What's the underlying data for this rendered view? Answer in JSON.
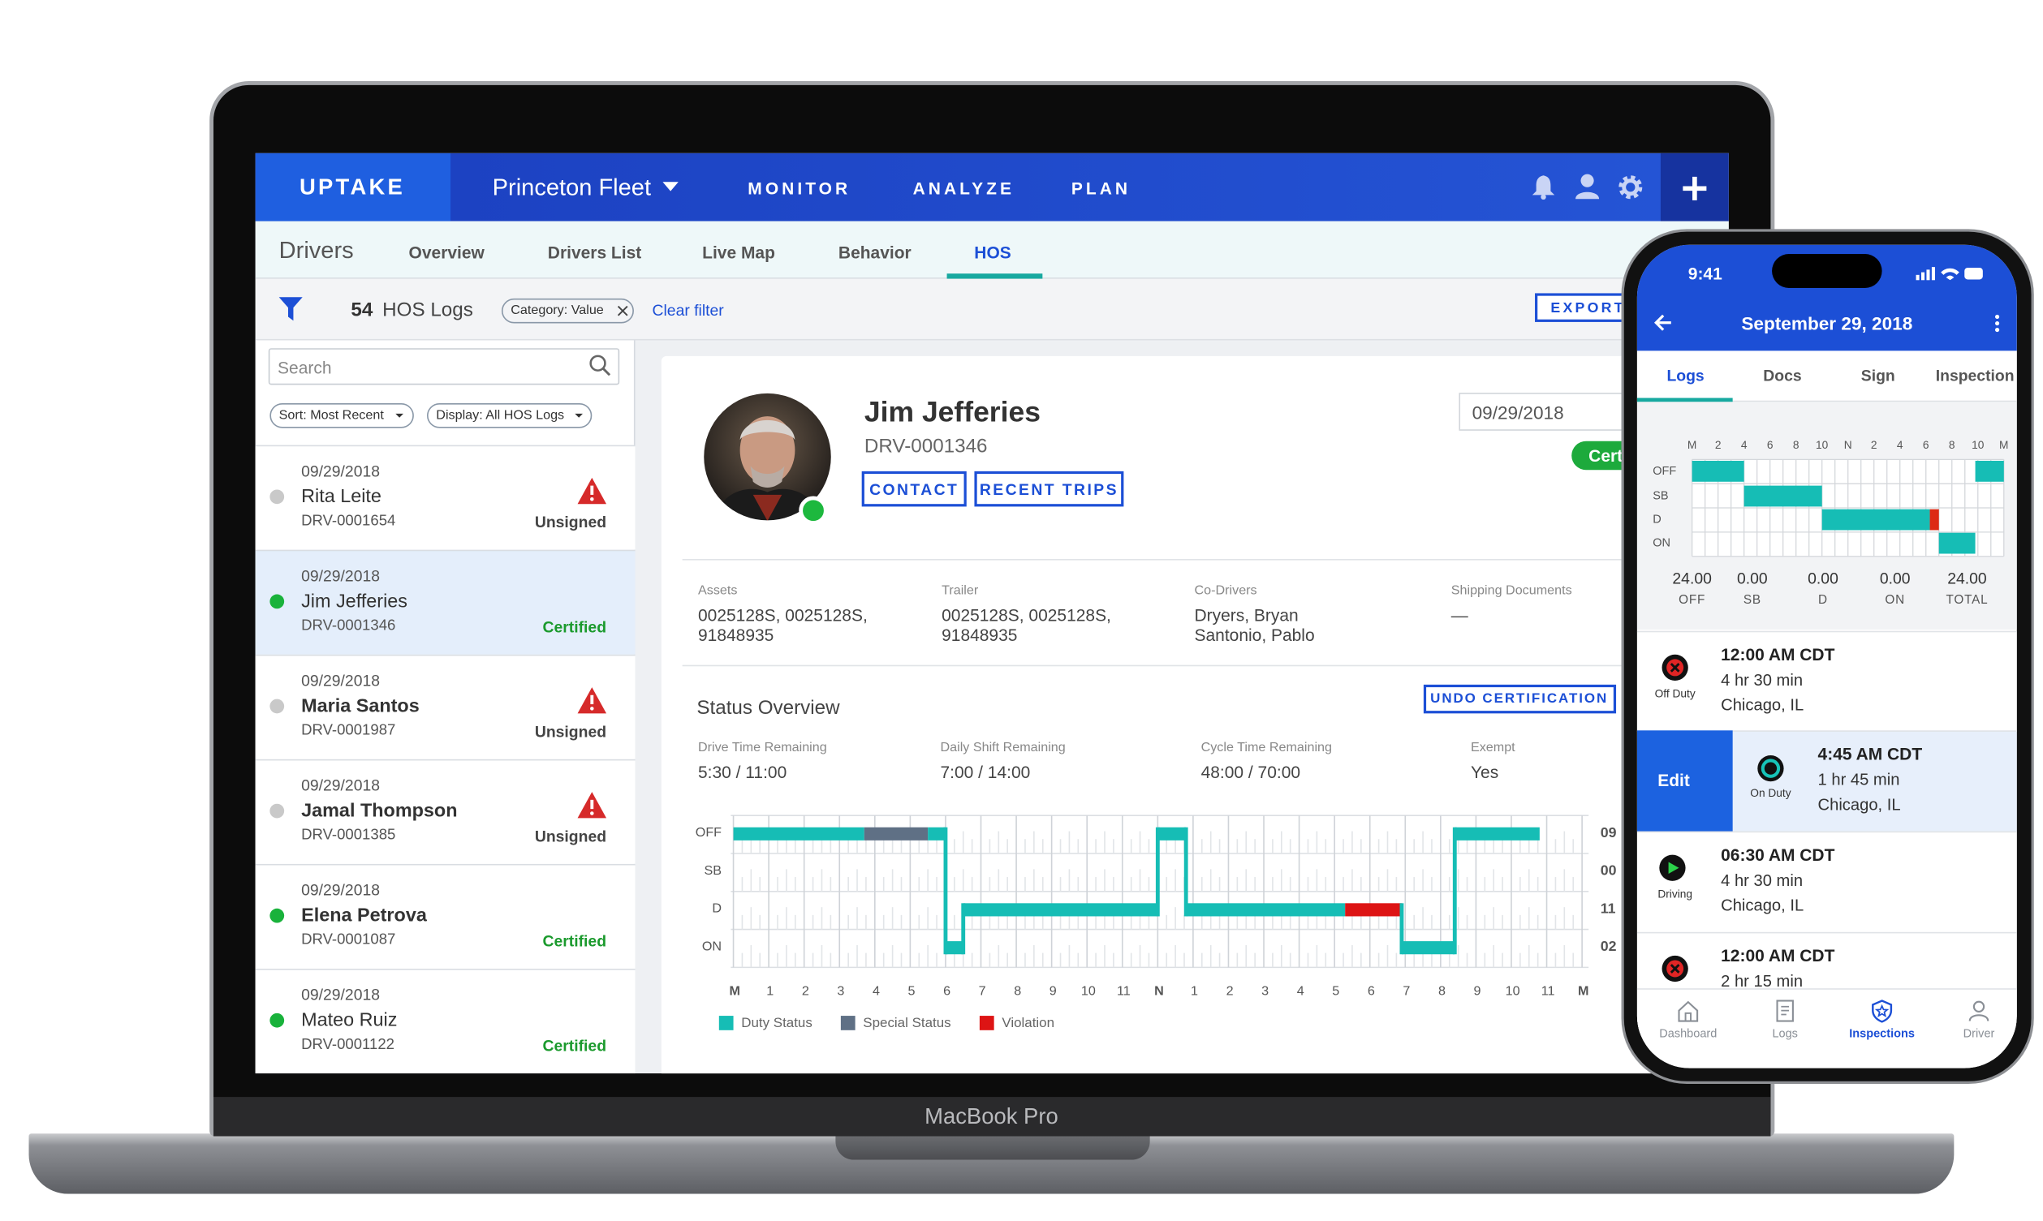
{
  "laptop": {
    "brand": "MacBook Pro"
  },
  "nav": {
    "logo": "UPTAKE",
    "fleet": "Princeton Fleet",
    "items": [
      "MONITOR",
      "ANALYZE",
      "PLAN"
    ]
  },
  "subnav": {
    "section": "Drivers",
    "tabs": [
      "Overview",
      "Drivers List",
      "Live Map",
      "Behavior",
      "HOS"
    ]
  },
  "toolbar": {
    "count": "54",
    "count_label": "HOS Logs",
    "filter_chip": "Category: Value",
    "clear_filter": "Clear filter",
    "export": "EXPORT"
  },
  "sidebar": {
    "search": "Search",
    "sort": "Sort: Most Recent",
    "display": "Display: All HOS Logs",
    "logs": [
      {
        "date": "09/29/2018",
        "name": "Rita Leite",
        "id": "DRV-0001654",
        "status": "Unsigned"
      },
      {
        "date": "09/29/2018",
        "name": "Jim Jefferies",
        "id": "DRV-0001346",
        "status": "Certified"
      },
      {
        "date": "09/29/2018",
        "name": "Maria Santos",
        "id": "DRV-0001987",
        "status": "Unsigned"
      },
      {
        "date": "09/29/2018",
        "name": "Jamal Thompson",
        "id": "DRV-0001385",
        "status": "Unsigned"
      },
      {
        "date": "09/29/2018",
        "name": "Elena Petrova",
        "id": "DRV-0001087",
        "status": "Certified"
      },
      {
        "date": "09/29/2018",
        "name": "Mateo Ruiz",
        "id": "DRV-0001122",
        "status": "Certified"
      }
    ]
  },
  "driver": {
    "name": "Jim Jefferies",
    "id": "DRV-0001346",
    "contact": "CONTACT",
    "recent_trips": "RECENT TRIPS",
    "date": "09/29/2018",
    "badge": "Cert",
    "info": [
      {
        "label": "Assets",
        "value": [
          "0025128S, 0025128S,",
          "91848935"
        ]
      },
      {
        "label": "Trailer",
        "value": [
          "0025128S, 0025128S,",
          "91848935"
        ]
      },
      {
        "label": "Co-Drivers",
        "value": [
          "Dryers, Bryan",
          "Santonio, Pablo"
        ]
      },
      {
        "label": "Shipping Documents",
        "value": [
          "—"
        ]
      }
    ]
  },
  "status_overview": {
    "title": "Status Overview",
    "undo": "UNDO CERTIFICATION",
    "stats": [
      {
        "label": "Drive Time Remaining",
        "value": "5:30 / 11:00"
      },
      {
        "label": "Daily Shift Remaining",
        "value": "7:00 / 14:00"
      },
      {
        "label": "Cycle Time Remaining",
        "value": "48:00 / 70:00"
      },
      {
        "label": "Exempt",
        "value": "Yes"
      }
    ],
    "rows": [
      "OFF",
      "SB",
      "D",
      "ON"
    ],
    "hours": [
      "M",
      "1",
      "2",
      "3",
      "4",
      "5",
      "6",
      "7",
      "8",
      "9",
      "10",
      "11",
      "N",
      "1",
      "2",
      "3",
      "4",
      "5",
      "6",
      "7",
      "8",
      "9",
      "10",
      "11",
      "M"
    ],
    "totals": [
      "09",
      "00",
      "11",
      "02"
    ],
    "legend": [
      "Duty Status",
      "Special Status",
      "Violation"
    ]
  },
  "phone": {
    "time": "9:41",
    "title": "September 29, 2018",
    "tabs": [
      "Logs",
      "Docs",
      "Sign",
      "Inspection"
    ],
    "hours": [
      "M",
      "2",
      "4",
      "6",
      "8",
      "10",
      "N",
      "2",
      "4",
      "6",
      "8",
      "10",
      "M"
    ],
    "rows": [
      "OFF",
      "SB",
      "D",
      "ON"
    ],
    "totals": [
      {
        "value": "24.00",
        "label": "OFF"
      },
      {
        "value": "0.00",
        "label": "SB"
      },
      {
        "value": "0.00",
        "label": "D"
      },
      {
        "value": "0.00",
        "label": "ON"
      },
      {
        "value": "24.00",
        "label": "TOTAL"
      }
    ],
    "events": [
      {
        "status": "Off Duty",
        "time": "12:00 AM CDT",
        "duration": "4 hr 30 min",
        "location": "Chicago, IL"
      },
      {
        "status": "On Duty",
        "time": "4:45 AM CDT",
        "duration": "1 hr 45 min",
        "location": "Chicago, IL"
      },
      {
        "status": "Driving",
        "time": "06:30 AM CDT",
        "duration": "4 hr 30 min",
        "location": "Chicago, IL"
      },
      {
        "time": "12:00 AM CDT",
        "duration": "2 hr 15 min"
      }
    ],
    "edit": "Edit",
    "bottom_nav": [
      "Dashboard",
      "Logs",
      "Inspections",
      "Driver"
    ]
  }
}
